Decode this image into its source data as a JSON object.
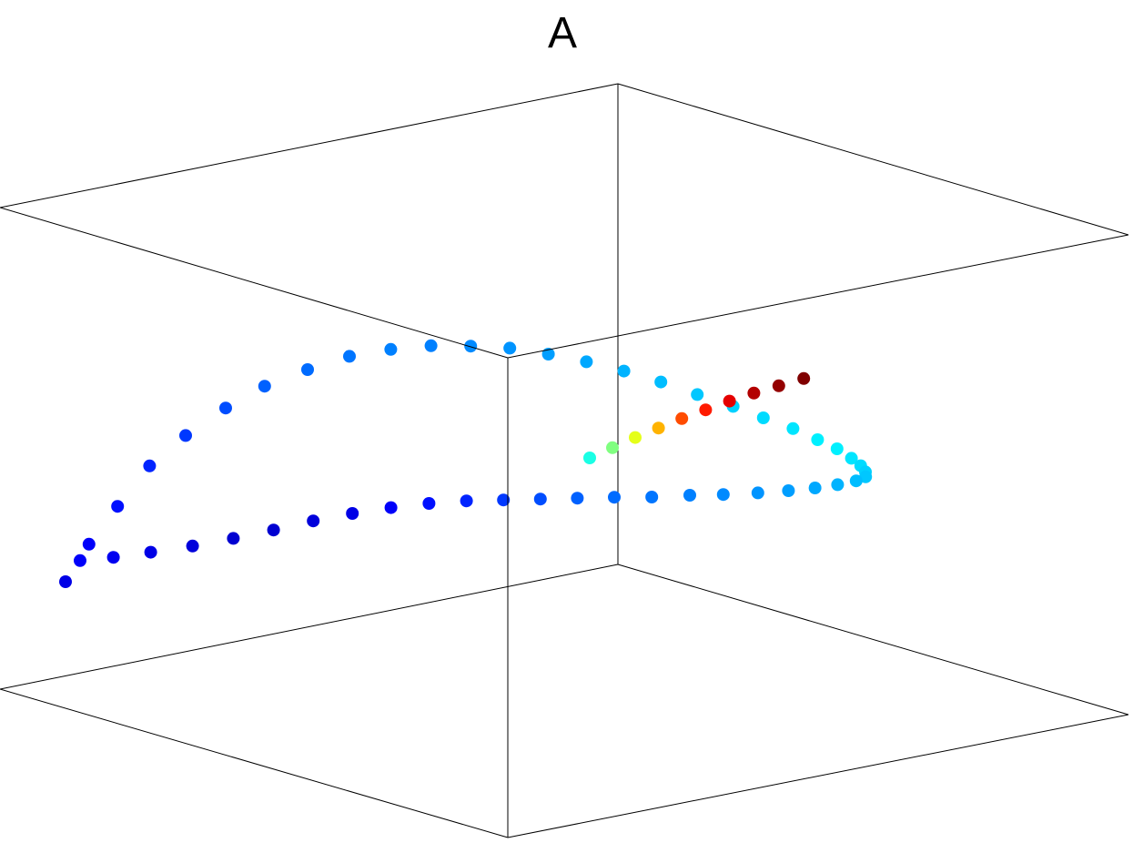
{
  "title": "A",
  "chart_data": {
    "type": "scatter",
    "title": "A",
    "projection": "3d",
    "axes_box": true,
    "grid": false,
    "legend": "none",
    "colormap": "jet",
    "color_range": [
      0,
      1
    ],
    "point_color_note": "jet",
    "x": [
      -1.0,
      -0.97,
      -0.93,
      -0.88,
      -0.82,
      -0.75,
      -0.68,
      -0.6,
      -0.52,
      -0.44,
      -0.36,
      -0.28,
      -0.2,
      -0.12,
      -0.04,
      0.04,
      0.12,
      0.2,
      0.28,
      0.35,
      0.42,
      0.48,
      0.53,
      0.57,
      0.6,
      0.62,
      0.63,
      0.62,
      0.59,
      0.55,
      0.5,
      0.44,
      0.37,
      0.3,
      0.22,
      0.14,
      0.06,
      -0.02,
      -0.1,
      -0.18,
      -0.26,
      -0.34,
      -0.42,
      -0.5,
      -0.58,
      -0.66,
      -0.74,
      -0.82,
      -0.89,
      -0.95,
      0.05,
      0.1,
      0.15,
      0.2,
      0.25,
      0.3,
      0.35,
      0.4,
      0.45,
      0.5
    ],
    "y": [
      0.2,
      0.35,
      0.5,
      0.62,
      0.72,
      0.8,
      0.86,
      0.9,
      0.92,
      0.93,
      0.92,
      0.9,
      0.87,
      0.83,
      0.78,
      0.72,
      0.65,
      0.57,
      0.48,
      0.38,
      0.27,
      0.16,
      0.05,
      -0.06,
      -0.17,
      -0.27,
      -0.36,
      -0.44,
      -0.5,
      -0.54,
      -0.56,
      -0.56,
      -0.54,
      -0.5,
      -0.45,
      -0.39,
      -0.32,
      -0.25,
      -0.18,
      -0.11,
      -0.05,
      0.0,
      0.04,
      0.07,
      0.09,
      0.1,
      0.1,
      0.08,
      0.05,
      0.0,
      0.0,
      -0.05,
      -0.1,
      -0.14,
      -0.18,
      -0.21,
      -0.24,
      -0.26,
      -0.27,
      -0.28
    ],
    "z": [
      -0.3,
      -0.1,
      0.1,
      0.3,
      0.45,
      0.58,
      0.68,
      0.75,
      0.8,
      0.82,
      0.82,
      0.8,
      0.77,
      0.72,
      0.66,
      0.59,
      0.51,
      0.42,
      0.33,
      0.24,
      0.15,
      0.06,
      -0.02,
      -0.1,
      -0.17,
      -0.23,
      -0.28,
      -0.32,
      -0.35,
      -0.37,
      -0.38,
      -0.38,
      -0.37,
      -0.35,
      -0.33,
      -0.3,
      -0.27,
      -0.24,
      -0.21,
      -0.18,
      -0.16,
      -0.15,
      -0.15,
      -0.16,
      -0.18,
      -0.2,
      -0.22,
      -0.24,
      -0.26,
      -0.28,
      0.0,
      0.02,
      0.04,
      0.06,
      0.08,
      0.1,
      0.12,
      0.14,
      0.16,
      0.18
    ],
    "color_value": [
      0.1,
      0.12,
      0.14,
      0.16,
      0.18,
      0.2,
      0.22,
      0.23,
      0.24,
      0.25,
      0.25,
      0.26,
      0.27,
      0.28,
      0.29,
      0.3,
      0.31,
      0.32,
      0.33,
      0.34,
      0.35,
      0.36,
      0.36,
      0.35,
      0.34,
      0.33,
      0.32,
      0.31,
      0.3,
      0.29,
      0.28,
      0.27,
      0.26,
      0.25,
      0.24,
      0.23,
      0.22,
      0.2,
      0.18,
      0.16,
      0.14,
      0.12,
      0.1,
      0.09,
      0.08,
      0.08,
      0.09,
      0.1,
      0.11,
      0.12,
      0.4,
      0.5,
      0.6,
      0.7,
      0.8,
      0.85,
      0.9,
      0.95,
      0.98,
      1.0
    ]
  }
}
